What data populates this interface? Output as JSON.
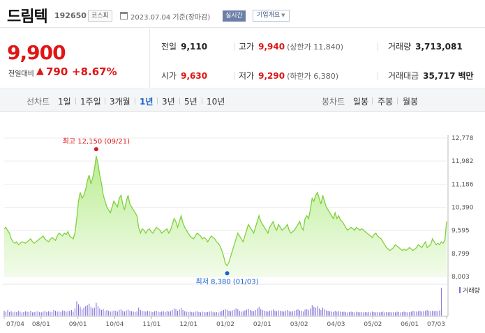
{
  "header": {
    "name": "드림텍",
    "code": "192650",
    "market": "코스피",
    "date_text": "2023.07.04 기준(장마감)",
    "realtime": "실시간",
    "overview": "기업개요"
  },
  "price": {
    "current": "9,900",
    "change_label": "전일대비",
    "change_arrow": "▲",
    "change_value": "790",
    "change_pct": "+8.67%"
  },
  "stats": {
    "prev_label": "전일",
    "prev_value": "9,110",
    "high_label": "고가",
    "high_value": "9,940",
    "upper_limit": "(상한가 11,840)",
    "volume_label": "거래량",
    "volume_value": "3,713,081",
    "open_label": "시가",
    "open_value": "9,630",
    "low_label": "저가",
    "low_value": "9,290",
    "lower_limit": "(하한가 6,380)",
    "amount_label": "거래대금",
    "amount_value": "35,717",
    "amount_unit": "백만"
  },
  "period": {
    "line_label": "선차트",
    "line_items": [
      "1일",
      "1주일",
      "3개월",
      "1년",
      "3년",
      "5년",
      "10년"
    ],
    "active": "1년",
    "candle_label": "봉차트",
    "candle_items": [
      "일봉",
      "주봉",
      "월봉"
    ]
  },
  "colors": {
    "up": "#e01616",
    "down": "#1a5fd1",
    "line": "#7fd13b",
    "vol": "#7a6bd8"
  },
  "chart_data": {
    "type": "area",
    "y_ticks": [
      "12,778",
      "11,982",
      "11,186",
      "10,390",
      "9,595",
      "8,799",
      "8,003"
    ],
    "ylim": [
      8003,
      12778
    ],
    "x_ticks": [
      "07/04",
      "08/01",
      "09/01",
      "10/04",
      "11/01",
      "12/01",
      "01/02",
      "02/01",
      "03/02",
      "04/03",
      "05/02",
      "06/01",
      "07/03"
    ],
    "high_annotation": "최고 12,150 (09/21)",
    "low_annotation": "최저 8,380 (01/03)",
    "volume_legend": "거래량",
    "series": [
      {
        "values": [
          9650,
          9700,
          9580,
          9500,
          9300,
          9200,
          9150,
          9200,
          9100,
          9150,
          9200,
          9180,
          9150,
          9200,
          9250,
          9300,
          9200,
          9150,
          9200,
          9250,
          9300,
          9350,
          9400,
          9300,
          9250,
          9200,
          9280,
          9350,
          9300,
          9250,
          9400,
          9500,
          9450,
          9400,
          9500,
          9450,
          9550,
          9400,
          9350,
          9300,
          9500,
          10000,
          10600,
          10900,
          10700,
          10800,
          11000,
          11300,
          11500,
          11200,
          11400,
          11700,
          12150,
          11900,
          11500,
          11200,
          10800,
          10600,
          10400,
          10300,
          10200,
          10400,
          10600,
          10500,
          10400,
          10700,
          10800,
          10500,
          10300,
          10600,
          10800,
          10500,
          10400,
          10300,
          10200,
          10100,
          9700,
          9500,
          9650,
          9600,
          9500,
          9600,
          9650,
          9550,
          9500,
          9600,
          9700,
          9650,
          9600,
          9500,
          9550,
          9600,
          9650,
          9500,
          9600,
          9800,
          10000,
          9900,
          9700,
          9900,
          10100,
          9850,
          9700,
          9600,
          9500,
          9400,
          9350,
          9300,
          9400,
          9500,
          9450,
          9400,
          9300,
          9350,
          9300,
          9200,
          9300,
          9400,
          9350,
          9300,
          9200,
          9150,
          9050,
          8900,
          8700,
          8450,
          8380,
          8500,
          8700,
          8900,
          9100,
          9300,
          9500,
          9400,
          9300,
          9200,
          9400,
          9600,
          9800,
          9700,
          9600,
          9500,
          9700,
          9900,
          10100,
          9900,
          9800,
          9700,
          9600,
          9500,
          9700,
          9800,
          9900,
          9700,
          9600,
          9800,
          9700,
          9600,
          9650,
          9700,
          9800,
          9600,
          9500,
          9550,
          9600,
          9700,
          9800,
          9900,
          9700,
          9600,
          10000,
          10100,
          10000,
          10300,
          10700,
          10600,
          10800,
          10900,
          10700,
          10500,
          10800,
          10600,
          10400,
          10300,
          10200,
          10100,
          10000,
          10200,
          10000,
          10100,
          9950,
          9900,
          9800,
          9700,
          9600,
          9650,
          9700,
          9650,
          9600,
          9700,
          9650,
          9600,
          9650,
          9600,
          9550,
          9500,
          9450,
          9400,
          9350,
          9450,
          9500,
          9400,
          9350,
          9300,
          9200,
          9100,
          9000,
          8950,
          8900,
          8950,
          9000,
          9100,
          9050,
          9000,
          8950,
          8900,
          8950,
          8900,
          8950,
          9000,
          8950,
          8900,
          8950,
          9000,
          9100,
          9050,
          9000,
          9100,
          9200,
          9000,
          9050,
          9100,
          9300,
          9200,
          9100,
          9150,
          9100,
          9200,
          9150,
          9250,
          9900
        ]
      }
    ],
    "volume": [
      12,
      10,
      14,
      9,
      11,
      8,
      10,
      9,
      12,
      10,
      8,
      9,
      11,
      10,
      9,
      12,
      8,
      9,
      10,
      11,
      9,
      8,
      10,
      12,
      9,
      11,
      10,
      9,
      14,
      12,
      10,
      11,
      9,
      13,
      12,
      10,
      11,
      12,
      14,
      10,
      18,
      36,
      28,
      22,
      16,
      20,
      24,
      26,
      30,
      22,
      18,
      20,
      32,
      24,
      18,
      14,
      16,
      12,
      14,
      12,
      10,
      11,
      13,
      12,
      10,
      14,
      16,
      12,
      10,
      13,
      15,
      12,
      11,
      10,
      9,
      11,
      20,
      14,
      12,
      11,
      10,
      12,
      11,
      10,
      9,
      11,
      12,
      10,
      9,
      10,
      11,
      9,
      12,
      10,
      11,
      14,
      18,
      16,
      12,
      15,
      19,
      14,
      11,
      10,
      9,
      10,
      9,
      8,
      10,
      11,
      9,
      8,
      10,
      9,
      8,
      9,
      10,
      11,
      9,
      8,
      9,
      8,
      10,
      12,
      14,
      16,
      14,
      12,
      11,
      13,
      15,
      18,
      16,
      12,
      10,
      11,
      13,
      15,
      17,
      14,
      12,
      11,
      14,
      18,
      22,
      16,
      14,
      12,
      11,
      10,
      12,
      13,
      15,
      12,
      11,
      13,
      12,
      11,
      10,
      12,
      14,
      11,
      10,
      11,
      12,
      14,
      16,
      13,
      12,
      10,
      15,
      16,
      14,
      18,
      26,
      22,
      20,
      24,
      18,
      14,
      20,
      16,
      13,
      12,
      11,
      10,
      9,
      12,
      10,
      11,
      10,
      9,
      10,
      9,
      8,
      9,
      10,
      9,
      8,
      10,
      9,
      8,
      9,
      8,
      9,
      8,
      9,
      8,
      10,
      9,
      8,
      9,
      8,
      9,
      10,
      8,
      9,
      8,
      9,
      8,
      9,
      8,
      10,
      9,
      8,
      9,
      10,
      9,
      8,
      9,
      10,
      12,
      11,
      10,
      11,
      12,
      10,
      11,
      12,
      14,
      12,
      11,
      12,
      11,
      12,
      11,
      13,
      70
    ]
  }
}
